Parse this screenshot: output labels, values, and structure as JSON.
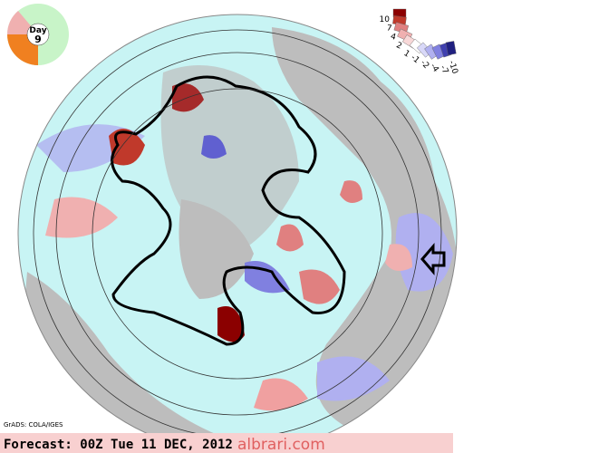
{
  "dial": {
    "label": "Day",
    "value": "9"
  },
  "colorbar": {
    "labels": [
      "10",
      "7",
      "4",
      "2",
      "1",
      "-1",
      "-2",
      "-4",
      "-7",
      "-10"
    ]
  },
  "footer": {
    "credit": "GrADS: COLA/IGES",
    "forecast": "Forecast: 00Z Tue 11 DEC, 2012",
    "watermark": "albrari.com"
  }
}
